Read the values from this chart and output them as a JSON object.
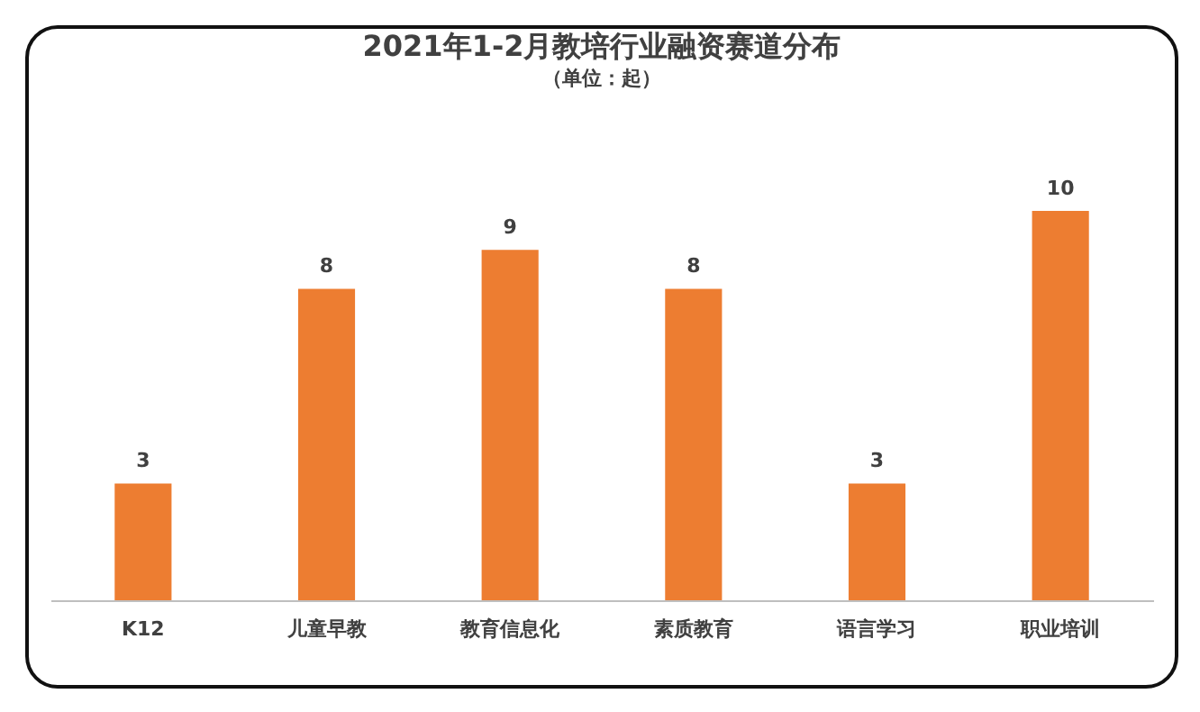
{
  "chart_data": {
    "type": "bar",
    "title": "2021年1-2月教培行业融资赛道分布",
    "subtitle": "（单位：起）",
    "categories": [
      "K12",
      "儿童早教",
      "教育信息化",
      "素质教育",
      "语言学习",
      "职业培训"
    ],
    "values": [
      3,
      8,
      9,
      8,
      3,
      10
    ],
    "color": "#ed7d31",
    "data_labels": true
  }
}
